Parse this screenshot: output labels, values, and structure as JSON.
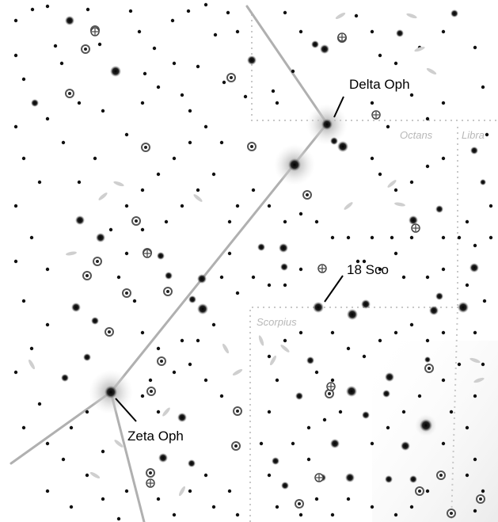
{
  "star_labels": {
    "delta_oph": "Delta Oph",
    "sco_18": "18 Sco",
    "zeta_oph": "Zeta Oph"
  },
  "constellation_labels": {
    "octans": "Octans",
    "libra": "Libra",
    "scorpius": "Scorpius"
  },
  "colors": {
    "background": "#ffffff",
    "constellation_line": "#b0b0b0",
    "boundary": "#c8c8c8",
    "star": "#111111",
    "glow": "#bdbdbd",
    "label_text": "#000000",
    "constellation_label": "#b8b8b8"
  }
}
